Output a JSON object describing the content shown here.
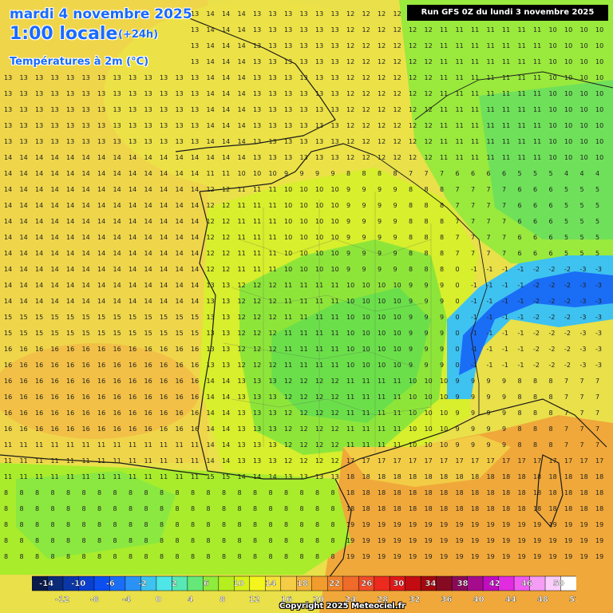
{
  "header": {
    "date": "mardi 4 novembre 2025",
    "hour": "1:00 locale",
    "offset": "(+24h)",
    "parameter": "Températures à 2m (°C)"
  },
  "run": {
    "label": "Run GFS 0Z du lundi 3 novembre 2025"
  },
  "legend": {
    "top_labels": [
      "-14",
      "-10",
      "-6",
      "-2",
      "2",
      "6",
      "10",
      "14",
      "18",
      "22",
      "26",
      "30",
      "34",
      "38",
      "42",
      "46",
      "50"
    ],
    "bottom_labels": [
      "-12",
      "-8",
      "-4",
      "0",
      "4",
      "8",
      "12",
      "16",
      "20",
      "24",
      "28",
      "32",
      "36",
      "40",
      "44",
      "48",
      "52"
    ],
    "colors": [
      "#0a1a4a",
      "#0b2a78",
      "#0b37a6",
      "#0a3fd0",
      "#0b4ff0",
      "#1a6df5",
      "#2b92f5",
      "#3ec2f0",
      "#4ee6e6",
      "#57e8b4",
      "#66e879",
      "#8fec3c",
      "#b6ef1f",
      "#d9f21a",
      "#f5f51e",
      "#f5e33a",
      "#f5cc45",
      "#f2b43a",
      "#f29c2d",
      "#f2852a",
      "#f06a2a",
      "#f04d2a",
      "#ec2a1e",
      "#e01818",
      "#c20c12",
      "#a3080e",
      "#860a22",
      "#8a0a5a",
      "#a50c8c",
      "#c00cc0",
      "#e12be0",
      "#f05cf0",
      "#f59cf5",
      "#fbcdfb",
      "#ffffff"
    ]
  },
  "copyright": "Copyright 2025 Meteociel.fr",
  "map_palette": {
    "sea_warm": "#f1a83a",
    "sea_mild": "#efd046",
    "land_mild": "#d9f21a",
    "land_cool": "#8fec3c",
    "land_cold": "#66e879",
    "alps_cold": "#1a6df5",
    "coast_line": "#1a1a1a",
    "number_color": "#222222"
  }
}
